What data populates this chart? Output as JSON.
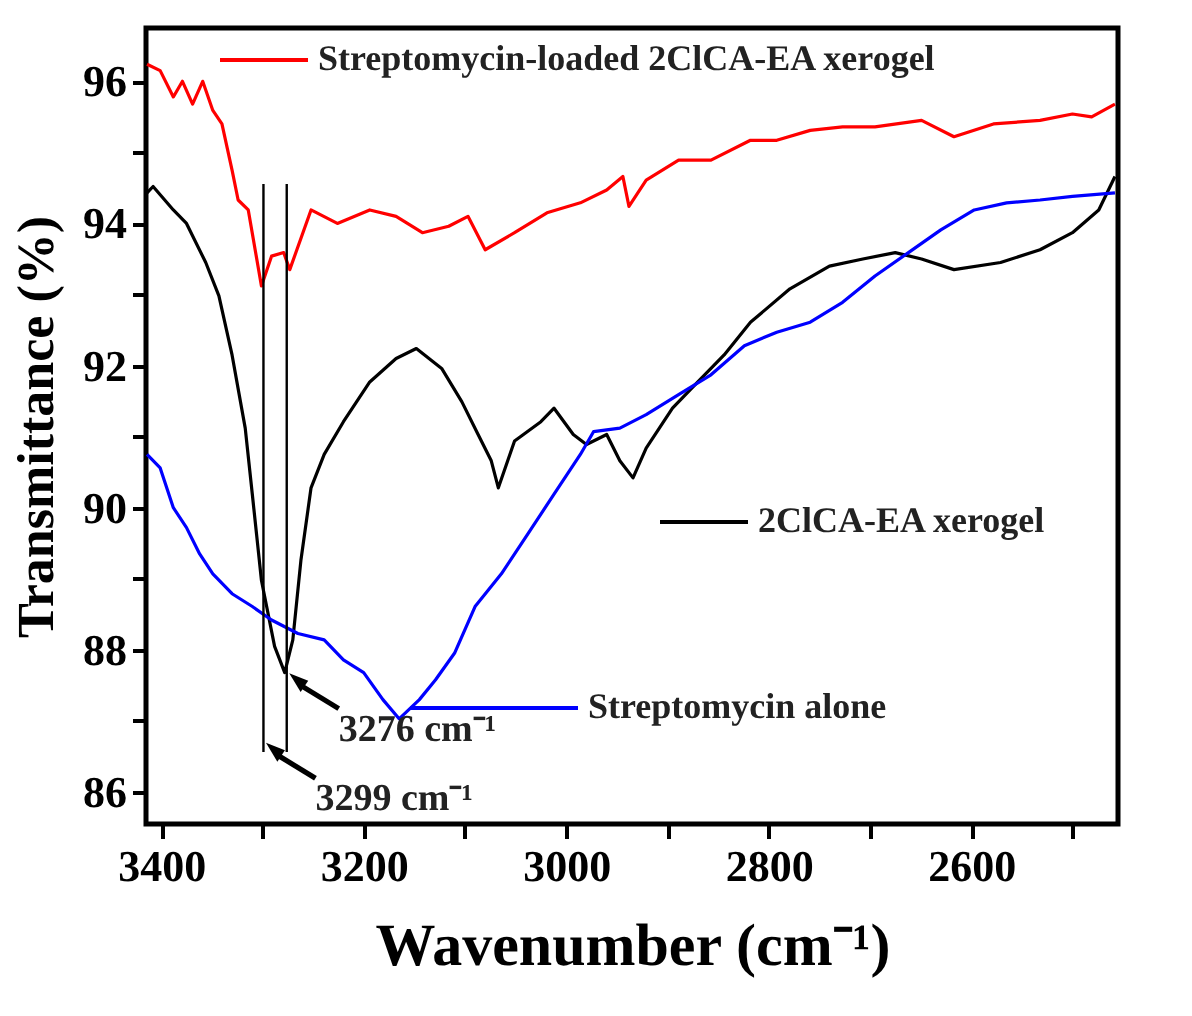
{
  "chart_data": {
    "type": "line",
    "xlabel": "Wavenumber (cm⁻¹)",
    "ylabel": "Transmittance (%)",
    "xlim": [
      3415,
      2455
    ],
    "ylim": [
      85.55,
      96.75
    ],
    "xticks": [
      3400,
      {
        "value": 3300,
        "label": null
      },
      3200,
      {
        "value": 3100,
        "label": null
      },
      3000,
      {
        "value": 2900,
        "label": null
      },
      2800,
      {
        "value": 2700,
        "label": null
      },
      2600,
      {
        "value": 2500,
        "label": null
      }
    ],
    "yticks": [
      86,
      {
        "value": 87,
        "label": null
      },
      88,
      {
        "value": 89,
        "label": null
      },
      90,
      {
        "value": 91,
        "label": null
      },
      92,
      {
        "value": 93,
        "label": null
      },
      94,
      {
        "value": 95,
        "label": null
      },
      96
    ],
    "grid": false,
    "line_style": "solid",
    "marker": "none",
    "legend": "right",
    "series": [
      {
        "name": "Streptomycin-loaded 2ClCA-EA xerogel",
        "color": "#ff0000",
        "x": [
          3414,
          3401,
          3388,
          3379,
          3369,
          3359,
          3349,
          3340,
          3330,
          3324,
          3314,
          3301,
          3291,
          3279,
          3273,
          3252,
          3226,
          3194,
          3168,
          3142,
          3116,
          3097,
          3080,
          3051,
          3019,
          2986,
          2960,
          2944,
          2938,
          2921,
          2889,
          2857,
          2818,
          2792,
          2759,
          2727,
          2695,
          2649,
          2617,
          2578,
          2532,
          2500,
          2481,
          2458
        ],
        "values": [
          96.24,
          96.15,
          95.78,
          96.0,
          95.68,
          96.0,
          95.59,
          95.4,
          94.75,
          94.33,
          94.19,
          93.12,
          93.54,
          93.59,
          93.35,
          94.19,
          94.0,
          94.19,
          94.1,
          93.87,
          93.96,
          94.1,
          93.63,
          93.87,
          94.15,
          94.29,
          94.47,
          94.66,
          94.24,
          94.61,
          94.89,
          94.89,
          95.17,
          95.17,
          95.31,
          95.36,
          95.36,
          95.45,
          95.22,
          95.4,
          95.45,
          95.54,
          95.5,
          95.68
        ]
      },
      {
        "name": "2ClCA-EA xerogel",
        "color": "#000000",
        "x": [
          3414,
          3408,
          3388,
          3375,
          3356,
          3343,
          3330,
          3317,
          3310,
          3301,
          3288,
          3278,
          3270,
          3262,
          3252,
          3239,
          3220,
          3194,
          3168,
          3148,
          3123,
          3103,
          3087,
          3074,
          3067,
          3051,
          3025,
          3012,
          2993,
          2980,
          2960,
          2947,
          2934,
          2921,
          2895,
          2870,
          2844,
          2818,
          2779,
          2740,
          2707,
          2675,
          2649,
          2617,
          2571,
          2532,
          2500,
          2474,
          2458
        ],
        "values": [
          94.43,
          94.52,
          94.19,
          94.0,
          93.45,
          92.98,
          92.15,
          91.12,
          90.19,
          88.98,
          88.05,
          87.68,
          88.14,
          89.26,
          90.28,
          90.75,
          91.21,
          91.77,
          92.1,
          92.24,
          91.96,
          91.49,
          91.03,
          90.66,
          90.28,
          90.94,
          91.21,
          91.4,
          91.03,
          90.89,
          91.03,
          90.66,
          90.42,
          90.84,
          91.4,
          91.77,
          92.15,
          92.61,
          93.08,
          93.4,
          93.5,
          93.59,
          93.5,
          93.35,
          93.45,
          93.63,
          93.87,
          94.19,
          94.66
        ]
      },
      {
        "name": "Streptomycin alone",
        "color": "#0000ff",
        "x": [
          3414,
          3401,
          3388,
          3375,
          3362,
          3349,
          3330,
          3310,
          3291,
          3265,
          3239,
          3220,
          3200,
          3181,
          3165,
          3145,
          3129,
          3110,
          3090,
          3064,
          3038,
          3012,
          2986,
          2973,
          2947,
          2921,
          2889,
          2857,
          2824,
          2792,
          2759,
          2727,
          2695,
          2662,
          2630,
          2597,
          2565,
          2532,
          2500,
          2458
        ],
        "values": [
          90.75,
          90.56,
          90.0,
          89.72,
          89.35,
          89.07,
          88.79,
          88.61,
          88.42,
          88.23,
          88.14,
          87.86,
          87.68,
          87.3,
          87.03,
          87.3,
          87.58,
          87.96,
          88.61,
          89.07,
          89.63,
          90.19,
          90.75,
          91.07,
          91.12,
          91.31,
          91.59,
          91.87,
          92.28,
          92.47,
          92.61,
          92.89,
          93.26,
          93.59,
          93.91,
          94.19,
          94.29,
          94.33,
          94.38,
          94.43
        ]
      }
    ],
    "ref_lines": [
      {
        "axis": "x",
        "value": 3299,
        "color": "#000000"
      },
      {
        "axis": "x",
        "value": 3276,
        "color": "#000000"
      }
    ],
    "annotations": [
      {
        "text": "3276 cm⁻¹",
        "x": 3276,
        "y": 87.68
      },
      {
        "text": "3299 cm⁻¹",
        "x": 3299,
        "y": 86.7
      }
    ]
  }
}
